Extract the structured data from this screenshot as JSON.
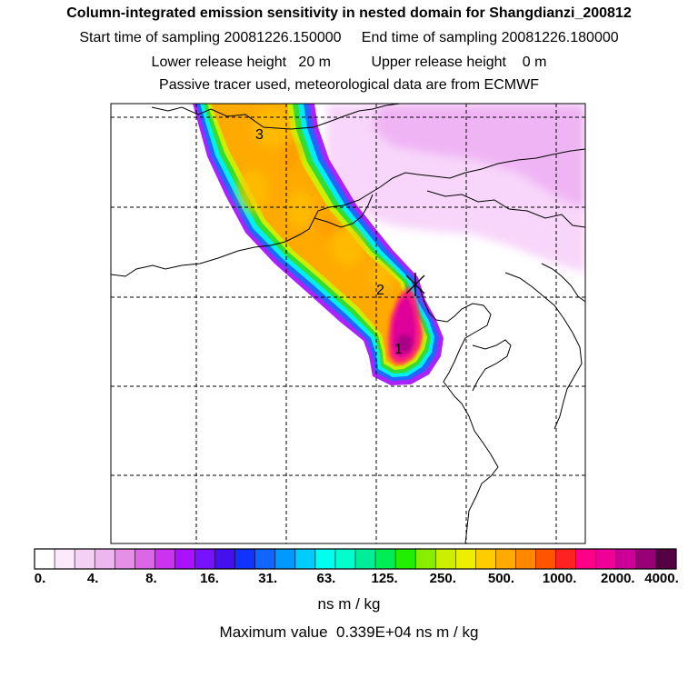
{
  "chart_data": {
    "type": "heatmap",
    "title": "Column-integrated emission sensitivity in nested domain for Shangdianzi_200812",
    "subtitle_lines": [
      "Start time of sampling 20081226.150000     End time of sampling 20081226.180000",
      "Lower release height   20 m          Upper release height    0 m",
      "Passive tracer used, meteorological data are from ECMWF"
    ],
    "colorbar": {
      "tick_labels": [
        "0.",
        "4.",
        "8.",
        "16.",
        "31.",
        "63.",
        "125.",
        "250.",
        "500.",
        "1000.",
        "2000.",
        "4000."
      ],
      "units": "ns m / kg",
      "scale": "log",
      "colors": [
        "#ffffff",
        "#fbe8fb",
        "#f5d0f5",
        "#eeb6ee",
        "#e68fe6",
        "#dd66e6",
        "#cc33ee",
        "#aa11ff",
        "#7711ff",
        "#4411ee",
        "#1133ff",
        "#1166ff",
        "#0099ff",
        "#00ccff",
        "#00ffee",
        "#00ffcc",
        "#00ee99",
        "#00ee55",
        "#22ee00",
        "#88ee00",
        "#ccee00",
        "#eeee00",
        "#ffcc00",
        "#ffaa00",
        "#ff8800",
        "#ff5500",
        "#ff2222",
        "#ff0088",
        "#ee0099",
        "#cc0099",
        "#990077",
        "#550044"
      ]
    },
    "max_value_label": "Maximum value  0.339E+04 ns m / kg",
    "max_value": 3390,
    "markers": [
      "1",
      "2",
      "3"
    ],
    "receptor": "Shangdianzi",
    "grid": true
  },
  "colors": {
    "magenta_peak": "#dd0099",
    "hot_pink": "#ff2277",
    "orange": "#ffaa00",
    "light_orange": "#ffc400",
    "yellow_green": "#ccee00",
    "green": "#33dd33",
    "cyan": "#00eeee",
    "blue": "#2266ff",
    "purple": "#aa22ff",
    "violet": "#ee55ee",
    "pale_violet": "#f3b8f7"
  }
}
